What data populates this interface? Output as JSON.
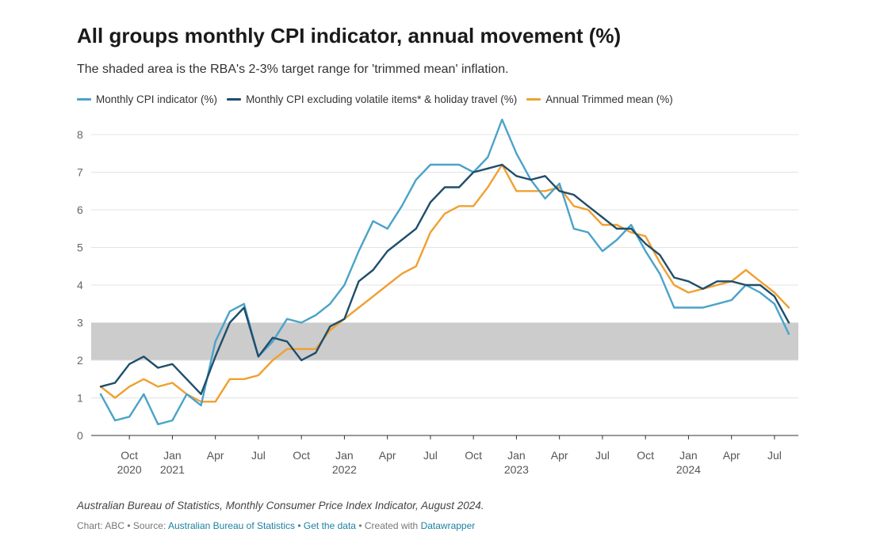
{
  "header": {
    "title": "All groups monthly CPI indicator, annual movement (%)",
    "subtitle": "The shaded area is the RBA's 2-3% target range for 'trimmed mean' inflation."
  },
  "footer": {
    "notes": "Australian Bureau of Statistics, Monthly Consumer Price Index Indicator, August 2024.",
    "chart_by": "Chart: ABC",
    "source_label": "Source:",
    "source_link": "Australian Bureau of Statistics",
    "get_data": "Get the data",
    "created_with": "Created with",
    "datawrapper": "Datawrapper",
    "sep": "•"
  },
  "chart_data": {
    "type": "line",
    "title": "All groups monthly CPI indicator, annual movement (%)",
    "subtitle": "The shaded area is the RBA's 2-3% target range for 'trimmed mean' inflation.",
    "x": [
      "2020-08",
      "2020-09",
      "2020-10",
      "2020-11",
      "2020-12",
      "2021-01",
      "2021-02",
      "2021-03",
      "2021-04",
      "2021-05",
      "2021-06",
      "2021-07",
      "2021-08",
      "2021-09",
      "2021-10",
      "2021-11",
      "2021-12",
      "2022-01",
      "2022-02",
      "2022-03",
      "2022-04",
      "2022-05",
      "2022-06",
      "2022-07",
      "2022-08",
      "2022-09",
      "2022-10",
      "2022-11",
      "2022-12",
      "2023-01",
      "2023-02",
      "2023-03",
      "2023-04",
      "2023-05",
      "2023-06",
      "2023-07",
      "2023-08",
      "2023-09",
      "2023-10",
      "2023-11",
      "2023-12",
      "2024-01",
      "2024-02",
      "2024-03",
      "2024-04",
      "2024-05",
      "2024-06",
      "2024-07",
      "2024-08"
    ],
    "series": [
      {
        "name": "Monthly CPI indicator (%)",
        "color": "#4ba3c9",
        "values": [
          1.1,
          0.4,
          0.5,
          1.1,
          0.3,
          0.4,
          1.1,
          0.8,
          2.5,
          3.3,
          3.5,
          2.1,
          2.5,
          3.1,
          3.0,
          3.2,
          3.5,
          4.0,
          4.9,
          5.7,
          5.5,
          6.1,
          6.8,
          7.2,
          7.2,
          7.2,
          7.0,
          7.4,
          8.4,
          7.5,
          6.8,
          6.3,
          6.7,
          5.5,
          5.4,
          4.9,
          5.2,
          5.6,
          4.9,
          4.3,
          3.4,
          3.4,
          3.4,
          3.5,
          3.6,
          4.0,
          3.8,
          3.5,
          2.7
        ]
      },
      {
        "name": "Monthly CPI excluding volatile items* & holiday travel (%)",
        "color": "#1f4e6b",
        "values": [
          1.3,
          1.4,
          1.9,
          2.1,
          1.8,
          1.9,
          1.5,
          1.1,
          2.1,
          3.0,
          3.4,
          2.1,
          2.6,
          2.5,
          2.0,
          2.2,
          2.9,
          3.1,
          4.1,
          4.4,
          4.9,
          5.2,
          5.5,
          6.2,
          6.6,
          6.6,
          7.0,
          7.1,
          7.2,
          6.9,
          6.8,
          6.9,
          6.5,
          6.4,
          6.1,
          5.8,
          5.5,
          5.5,
          5.1,
          4.8,
          4.2,
          4.1,
          3.9,
          4.1,
          4.1,
          4.0,
          4.0,
          3.7,
          3.0
        ]
      },
      {
        "name": "Annual Trimmed mean (%)",
        "color": "#f0a030",
        "values": [
          1.3,
          1.0,
          1.3,
          1.5,
          1.3,
          1.4,
          1.1,
          0.9,
          0.9,
          1.5,
          1.5,
          1.6,
          2.0,
          2.3,
          2.3,
          2.3,
          2.8,
          3.1,
          3.4,
          3.7,
          4.0,
          4.3,
          4.5,
          5.4,
          5.9,
          6.1,
          6.1,
          6.6,
          7.2,
          6.5,
          6.5,
          6.5,
          6.6,
          6.1,
          6.0,
          5.6,
          5.6,
          5.4,
          5.3,
          4.6,
          4.0,
          3.8,
          3.9,
          4.0,
          4.1,
          4.4,
          4.1,
          3.8,
          3.4
        ]
      }
    ],
    "shaded_band": {
      "from": 2,
      "to": 3,
      "color": "#cccccc"
    },
    "ylim": [
      0,
      8
    ],
    "yticks": [
      "0",
      "1",
      "2",
      "3",
      "4",
      "5",
      "6",
      "7",
      "8"
    ],
    "xticks": [
      {
        "at": "2020-10",
        "label": "Oct",
        "year": "2020"
      },
      {
        "at": "2021-01",
        "label": "Jan",
        "year": "2021"
      },
      {
        "at": "2021-04",
        "label": "Apr",
        "year": ""
      },
      {
        "at": "2021-07",
        "label": "Jul",
        "year": ""
      },
      {
        "at": "2021-10",
        "label": "Oct",
        "year": ""
      },
      {
        "at": "2022-01",
        "label": "Jan",
        "year": "2022"
      },
      {
        "at": "2022-04",
        "label": "Apr",
        "year": ""
      },
      {
        "at": "2022-07",
        "label": "Jul",
        "year": ""
      },
      {
        "at": "2022-10",
        "label": "Oct",
        "year": ""
      },
      {
        "at": "2023-01",
        "label": "Jan",
        "year": "2023"
      },
      {
        "at": "2023-04",
        "label": "Apr",
        "year": ""
      },
      {
        "at": "2023-07",
        "label": "Jul",
        "year": ""
      },
      {
        "at": "2023-10",
        "label": "Oct",
        "year": ""
      },
      {
        "at": "2024-01",
        "label": "Jan",
        "year": "2024"
      },
      {
        "at": "2024-04",
        "label": "Apr",
        "year": ""
      },
      {
        "at": "2024-07",
        "label": "Jul",
        "year": ""
      }
    ],
    "grid": true,
    "legend": "top-left"
  }
}
